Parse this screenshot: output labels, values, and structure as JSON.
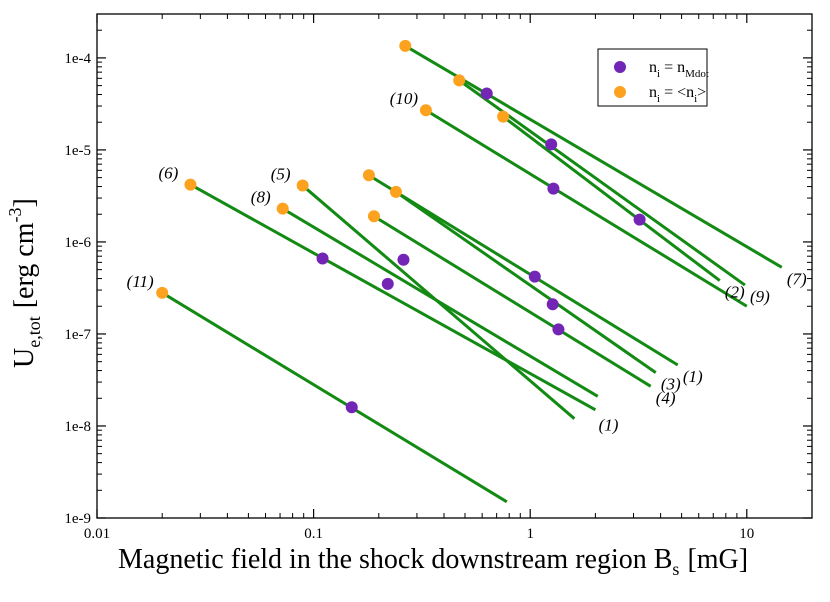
{
  "chart_data": {
    "type": "scatter",
    "xscale": "log",
    "yscale": "log",
    "xlim": [
      0.01,
      20
    ],
    "ylim": [
      1e-09,
      0.0003
    ],
    "xlabel_main": "Magnetic field in the shock downstream region B",
    "xlabel_sub": "s",
    "xlabel_unit": "[mG]",
    "ylabel_main": "U",
    "ylabel_sub": "e,tot",
    "ylabel_unit_a": "[erg cm",
    "ylabel_unit_exp": "-3",
    "ylabel_unit_b": "]",
    "x_ticks": [
      {
        "value": 0.01,
        "label": "0.01"
      },
      {
        "value": 0.1,
        "label": "0.1"
      },
      {
        "value": 1,
        "label": "1"
      },
      {
        "value": 10,
        "label": "10"
      }
    ],
    "y_ticks": [
      {
        "value": 1e-09,
        "label": "1e-9"
      },
      {
        "value": 1e-08,
        "label": "1e-8"
      },
      {
        "value": 1e-07,
        "label": "1e-7"
      },
      {
        "value": 1e-06,
        "label": "1e-6"
      },
      {
        "value": 1e-05,
        "label": "1e-5"
      },
      {
        "value": 0.0001,
        "label": "1e-4"
      }
    ],
    "legend": [
      {
        "symbol": "purple",
        "text": "n",
        "sub": "i",
        "text2": " = n",
        "sub2": "Mdot",
        "text3": ""
      },
      {
        "symbol": "orange",
        "text": "n",
        "sub": "i",
        "text2": " = <n",
        "sub2": "i",
        "text3": ">"
      }
    ],
    "colors": {
      "line": "#138a13",
      "purple": "#7326b6",
      "orange": "#fca21e"
    },
    "lines": [
      {
        "id": "7",
        "label": "(7)",
        "x": [
          0.265,
          14.5
        ],
        "y": [
          0.000135,
          5.3e-07
        ]
      },
      {
        "id": "9",
        "label": "(9)",
        "x": [
          0.47,
          9.8
        ],
        "y": [
          5.7e-05,
          3.4e-07
        ]
      },
      {
        "id": "2",
        "label": "(2)",
        "x": [
          0.75,
          7.5
        ],
        "y": [
          2.3e-05,
          3.8e-07
        ]
      },
      {
        "id": "10",
        "label": "(10)",
        "x": [
          0.33,
          10
        ],
        "y": [
          2.7e-05,
          2e-07
        ]
      },
      {
        "id": "1a",
        "label": "(1)",
        "x": [
          0.18,
          4.8
        ],
        "y": [
          5.3e-06,
          4.6e-08
        ]
      },
      {
        "id": "3",
        "label": "(3)",
        "x": [
          0.24,
          3.8
        ],
        "y": [
          3.5e-06,
          3.8e-08
        ]
      },
      {
        "id": "4",
        "label": "(4)",
        "x": [
          0.19,
          3.6
        ],
        "y": [
          1.9e-06,
          2.7e-08
        ]
      },
      {
        "id": "6",
        "label": "(6)",
        "x": [
          0.027,
          2.0
        ],
        "y": [
          4.2e-06,
          1.5e-08
        ]
      },
      {
        "id": "5",
        "label": "(5)",
        "x": [
          0.089,
          1.6
        ],
        "y": [
          4.1e-06,
          1.2e-08
        ]
      },
      {
        "id": "8",
        "label": "(8)",
        "x": [
          0.072,
          2.05
        ],
        "y": [
          2.3e-06,
          2.1e-08
        ]
      },
      {
        "id": "11",
        "label": "(11)",
        "x": [
          0.02,
          0.78
        ],
        "y": [
          2.8e-07,
          1.5e-09
        ]
      }
    ],
    "extra_labels": [
      {
        "label": "(1)",
        "x": 2.3,
        "y": 1.15e-08
      }
    ],
    "points_purple": [
      {
        "x": 0.63,
        "y": 4.1e-05
      },
      {
        "x": 1.25,
        "y": 1.15e-05
      },
      {
        "x": 1.28,
        "y": 3.8e-06
      },
      {
        "x": 3.2,
        "y": 1.75e-06
      },
      {
        "x": 0.11,
        "y": 6.6e-07
      },
      {
        "x": 0.26,
        "y": 6.4e-07
      },
      {
        "x": 0.22,
        "y": 3.5e-07
      },
      {
        "x": 1.05,
        "y": 4.2e-07
      },
      {
        "x": 1.27,
        "y": 2.1e-07
      },
      {
        "x": 1.35,
        "y": 1.12e-07
      },
      {
        "x": 0.15,
        "y": 1.6e-08
      }
    ],
    "points_orange": [
      {
        "x": 0.265,
        "y": 0.000135
      },
      {
        "x": 0.47,
        "y": 5.7e-05
      },
      {
        "x": 0.75,
        "y": 2.3e-05
      },
      {
        "x": 0.33,
        "y": 2.7e-05
      },
      {
        "x": 0.027,
        "y": 4.2e-06
      },
      {
        "x": 0.089,
        "y": 4.1e-06
      },
      {
        "x": 0.072,
        "y": 2.3e-06
      },
      {
        "x": 0.18,
        "y": 5.3e-06
      },
      {
        "x": 0.24,
        "y": 3.5e-06
      },
      {
        "x": 0.19,
        "y": 1.9e-06
      },
      {
        "x": 0.02,
        "y": 2.8e-07
      }
    ]
  }
}
